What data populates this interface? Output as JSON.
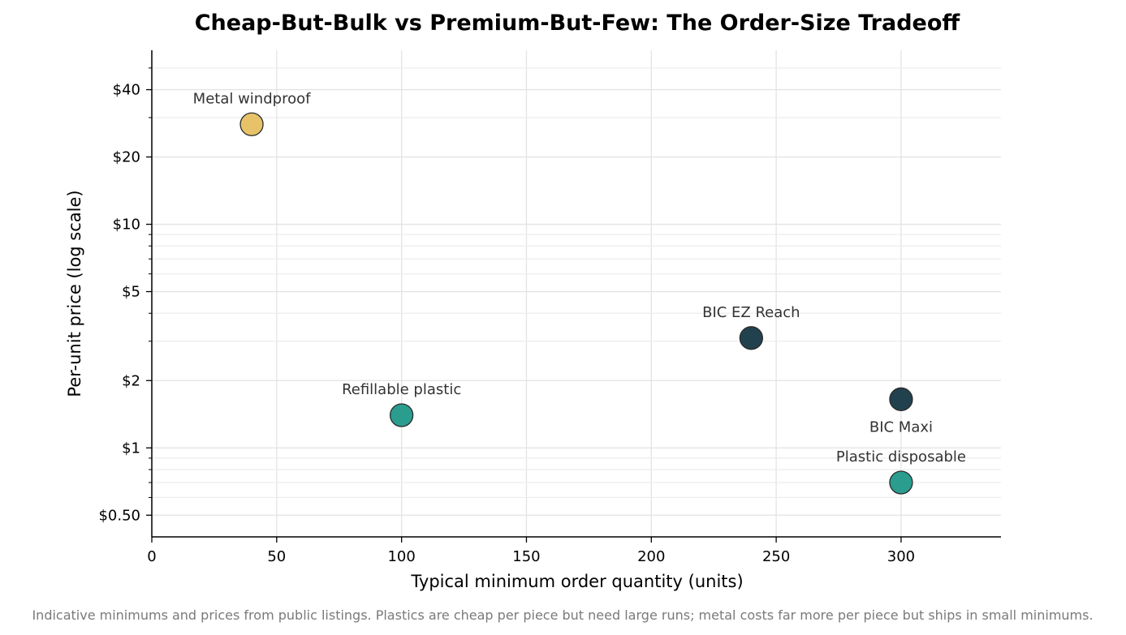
{
  "chart_data": {
    "type": "scatter",
    "title": "Cheap-But-Bulk vs Premium-But-Few: The Order-Size Tradeoff",
    "xlabel": "Typical minimum order quantity (units)",
    "ylabel": "Per-unit price (log scale)",
    "xlim": [
      0,
      340
    ],
    "ylim": [
      0.4,
      60
    ],
    "y_scale": "log",
    "grid": true,
    "x_ticks": [
      0,
      50,
      100,
      150,
      200,
      250,
      300
    ],
    "x_tick_labels": [
      "0",
      "50",
      "100",
      "150",
      "200",
      "250",
      "300"
    ],
    "y_ticks": [
      0.5,
      1,
      2,
      5,
      10,
      20,
      40
    ],
    "y_tick_labels": [
      "$0.50",
      "$1",
      "$2",
      "$5",
      "$10",
      "$20",
      "$40"
    ],
    "points": [
      {
        "label": "Metal windproof",
        "x": 40,
        "y": 28,
        "color": "#E8C268",
        "label_pos": "above"
      },
      {
        "label": "Refillable plastic",
        "x": 100,
        "y": 1.4,
        "color": "#2A9D8F",
        "label_pos": "above"
      },
      {
        "label": "BIC EZ Reach",
        "x": 240,
        "y": 3.1,
        "color": "#22414F",
        "label_pos": "above"
      },
      {
        "label": "BIC Maxi",
        "x": 300,
        "y": 1.65,
        "color": "#22414F",
        "label_pos": "below"
      },
      {
        "label": "Plastic disposable",
        "x": 300,
        "y": 0.7,
        "color": "#2A9D8F",
        "label_pos": "above"
      }
    ]
  },
  "caption": "Indicative minimums and prices from public listings. Plastics are cheap per piece but need large runs; metal costs far more per piece but ships in small minimums."
}
